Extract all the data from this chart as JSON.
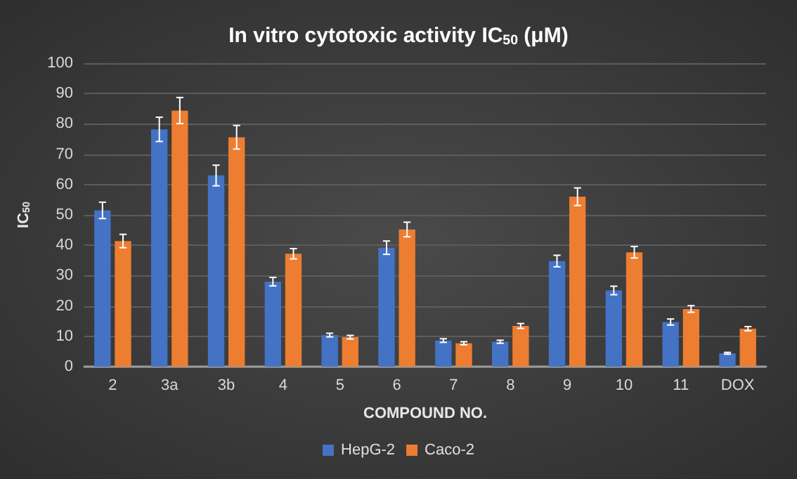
{
  "chart_data": {
    "type": "bar",
    "title": "In vitro cytotoxic activity IC$_{50}$ (μM)",
    "xlabel": "COMPOUND NO.",
    "ylabel": "IC$_{50}$",
    "categories": [
      "2",
      "3a",
      "3b",
      "4",
      "5",
      "6",
      "7",
      "8",
      "9",
      "10",
      "11",
      "DOX"
    ],
    "series": [
      {
        "name": "HepG-2",
        "color": "#4472c4",
        "values": [
          51.5,
          78.2,
          63,
          28,
          10.4,
          39.2,
          8.6,
          8.2,
          34.8,
          25.1,
          14.7,
          4.4
        ],
        "errors": [
          2.7,
          4,
          3.4,
          1.4,
          0.6,
          2.2,
          0.6,
          0.5,
          1.9,
          1.4,
          1,
          0.3
        ]
      },
      {
        "name": "Caco-2",
        "color": "#ed7d31",
        "values": [
          41.4,
          84.4,
          75.6,
          37.2,
          9.7,
          45.2,
          7.7,
          13.4,
          56,
          37.7,
          19,
          12.5
        ],
        "errors": [
          2.2,
          4.3,
          3.9,
          1.7,
          0.6,
          2.4,
          0.5,
          0.8,
          2.9,
          1.9,
          1.1,
          0.7
        ]
      }
    ],
    "ylim": [
      0,
      100
    ],
    "yticks": [
      0,
      10,
      20,
      30,
      40,
      50,
      60,
      70,
      80,
      90,
      100
    ],
    "grid": "y",
    "legend": "bottom"
  }
}
